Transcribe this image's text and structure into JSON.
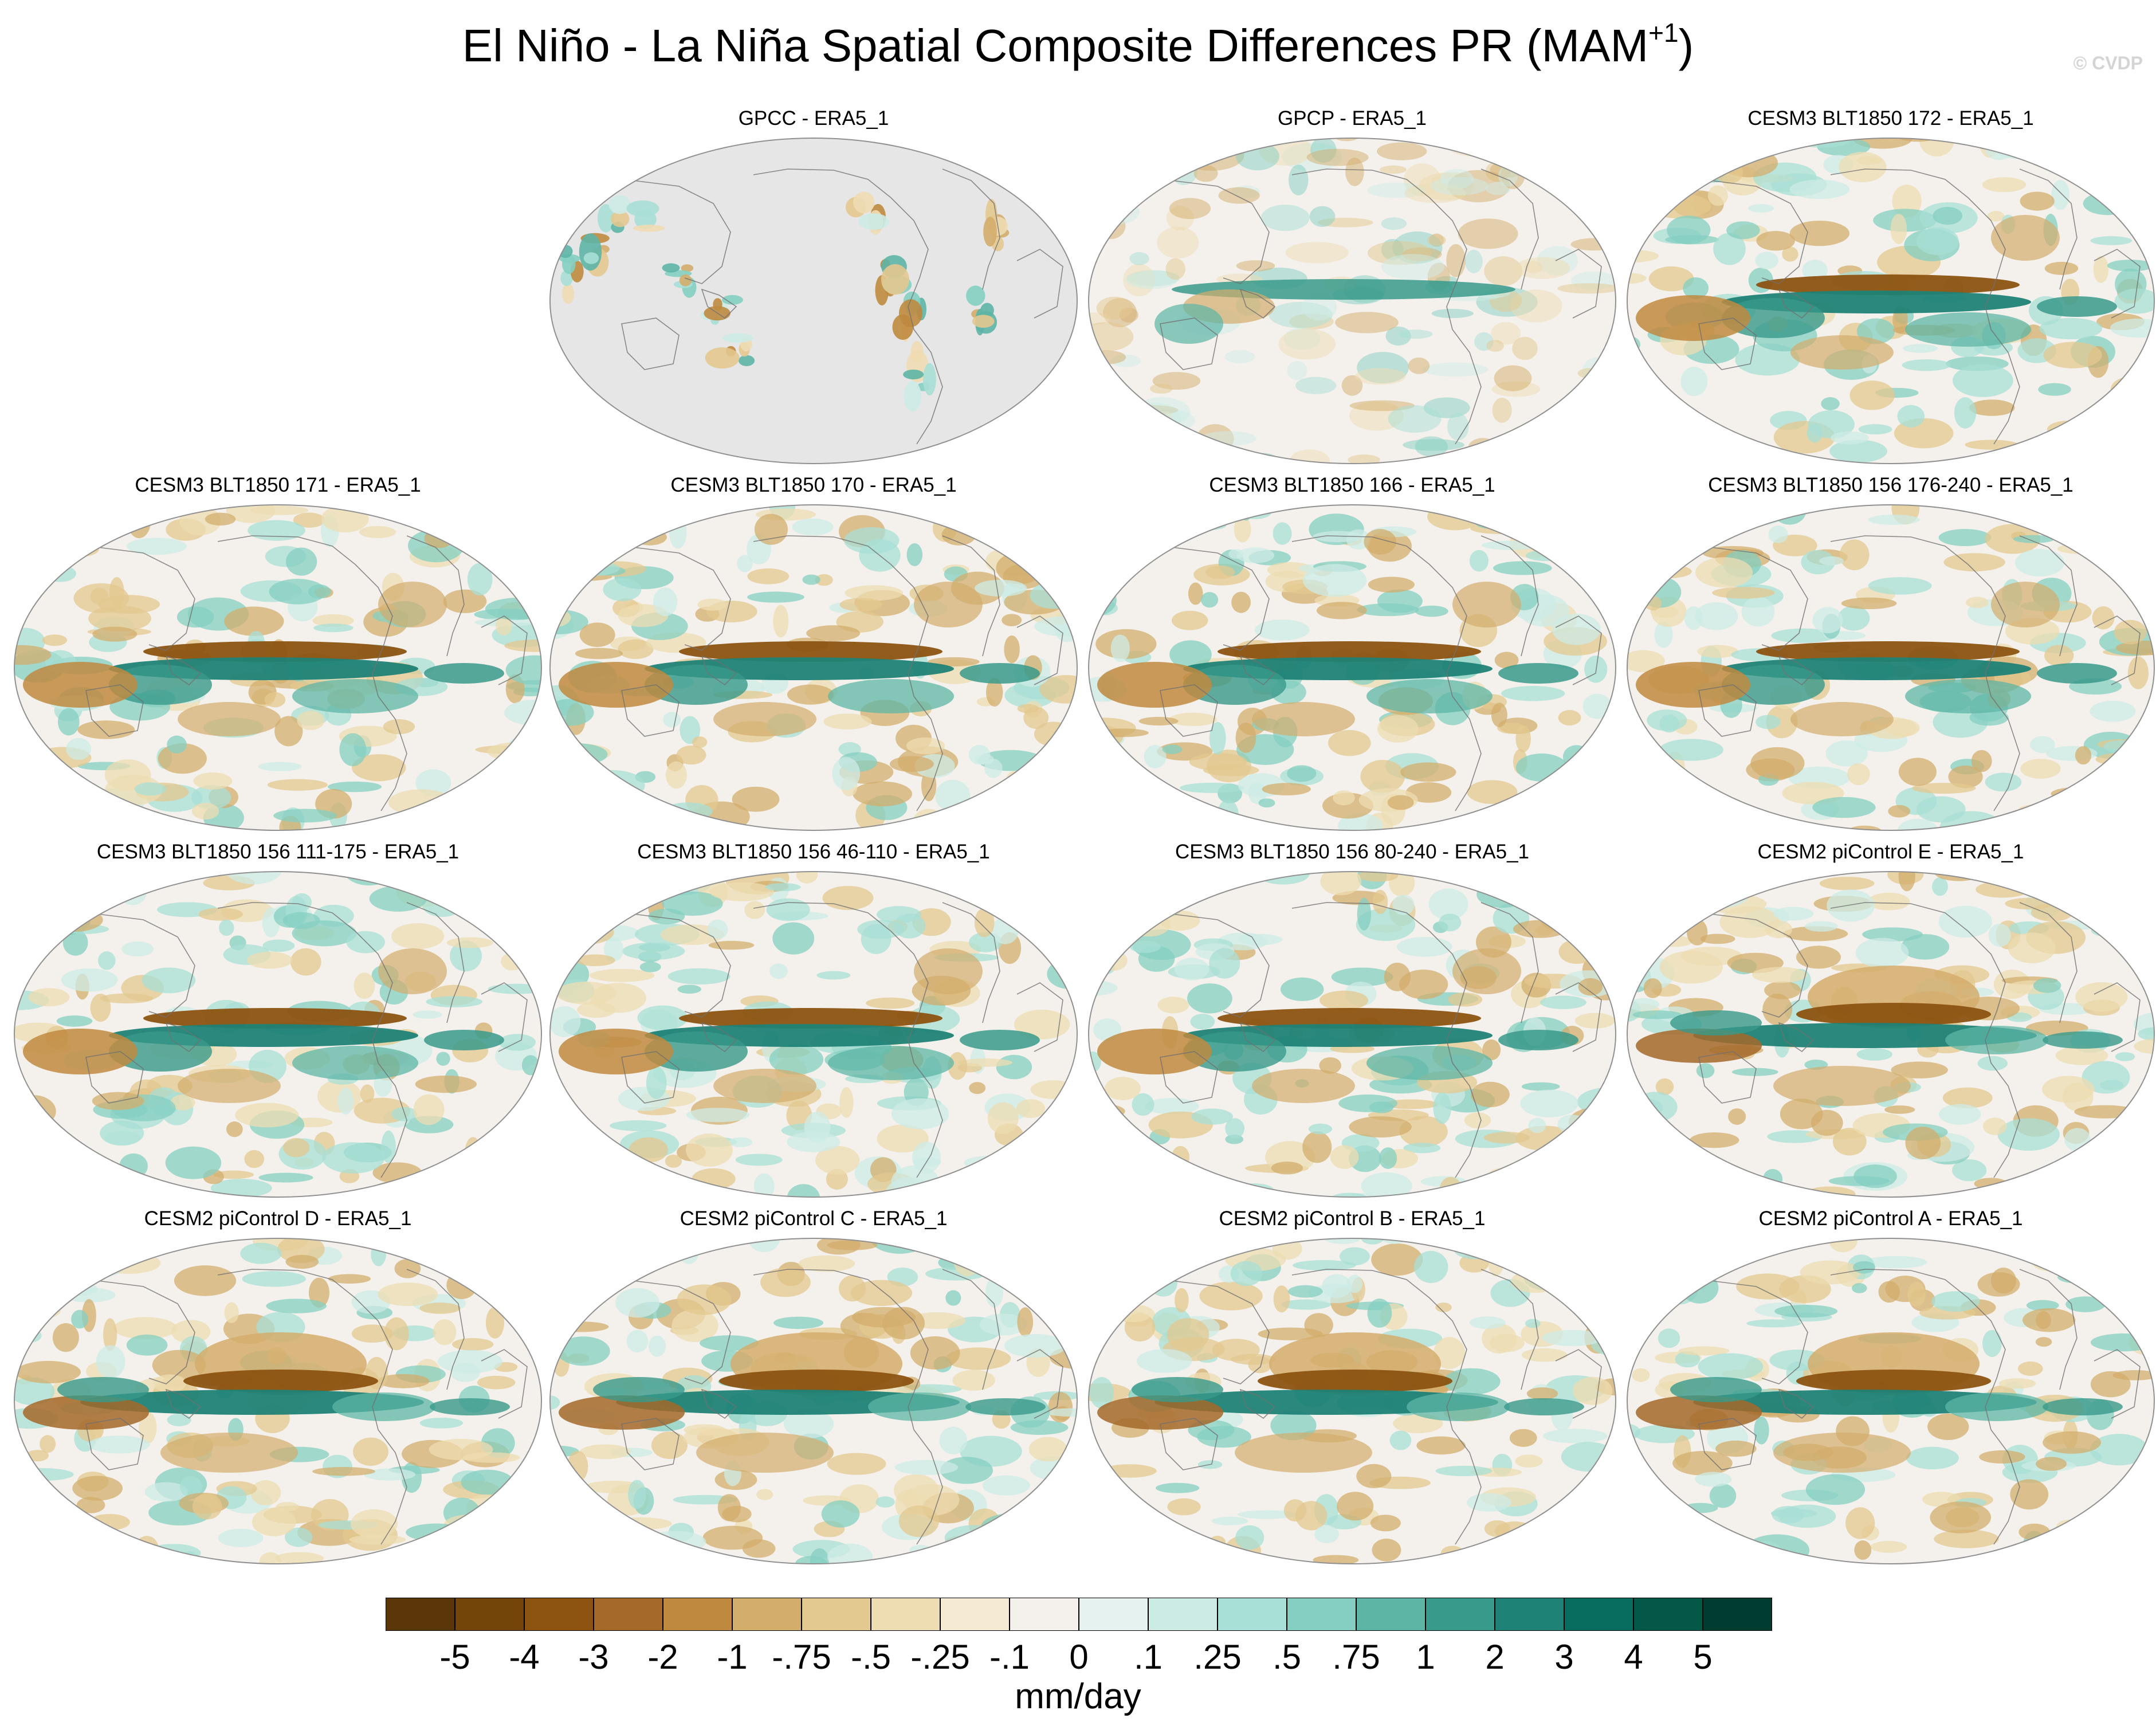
{
  "figure": {
    "title_main": "El Niño - La Niña Spatial Composite Differences PR (MAM",
    "title_sup": "+1",
    "title_close": ")",
    "credit": "© CVDP",
    "units": "mm/day"
  },
  "panels": [
    {
      "label": "GPCC - ERA5_1",
      "pattern": "gpcc"
    },
    {
      "label": "GPCP - ERA5_1",
      "pattern": "gpcp"
    },
    {
      "label": "CESM3 BLT1850 172 - ERA5_1",
      "pattern": "cesm3"
    },
    {
      "label": "CESM3 BLT1850 171 - ERA5_1",
      "pattern": "cesm3"
    },
    {
      "label": "CESM3 BLT1850 170 - ERA5_1",
      "pattern": "cesm3"
    },
    {
      "label": "CESM3 BLT1850 166 - ERA5_1",
      "pattern": "cesm3"
    },
    {
      "label": "CESM3 BLT1850 156 176-240 - ERA5_1",
      "pattern": "cesm3"
    },
    {
      "label": "CESM3 BLT1850 156 111-175 - ERA5_1",
      "pattern": "cesm3"
    },
    {
      "label": "CESM3 BLT1850 156 46-110 - ERA5_1",
      "pattern": "cesm3"
    },
    {
      "label": "CESM3 BLT1850 156 80-240 - ERA5_1",
      "pattern": "cesm3"
    },
    {
      "label": "CESM2 piControl E - ERA5_1",
      "pattern": "cesm2"
    },
    {
      "label": "CESM2 piControl D - ERA5_1",
      "pattern": "cesm2"
    },
    {
      "label": "CESM2 piControl C - ERA5_1",
      "pattern": "cesm2"
    },
    {
      "label": "CESM2 piControl B - ERA5_1",
      "pattern": "cesm2"
    },
    {
      "label": "CESM2 piControl A - ERA5_1",
      "pattern": "cesm2"
    }
  ],
  "colorbar": {
    "colors": [
      "#5a3608",
      "#744509",
      "#8c5311",
      "#a5692a",
      "#bf8a3f",
      "#d3ad6c",
      "#e3c88f",
      "#eedcb2",
      "#f5ebd3",
      "#f4f1ec",
      "#e6f2f0",
      "#cdebe5",
      "#a8dfd6",
      "#84cfc1",
      "#5db5a6",
      "#389a8b",
      "#1f8276",
      "#086c5f",
      "#045848",
      "#003c30"
    ],
    "labels": [
      "-5",
      "-4",
      "-3",
      "-2",
      "-1",
      "-.75",
      "-.5",
      "-.25",
      "-.1",
      "0",
      ".1",
      ".25",
      ".5",
      ".75",
      "1",
      "2",
      "3",
      "4",
      "5"
    ]
  },
  "colors": {
    "map_missing": "#e6e6e6",
    "map_outline": "#909090",
    "coastline": "#707070"
  }
}
